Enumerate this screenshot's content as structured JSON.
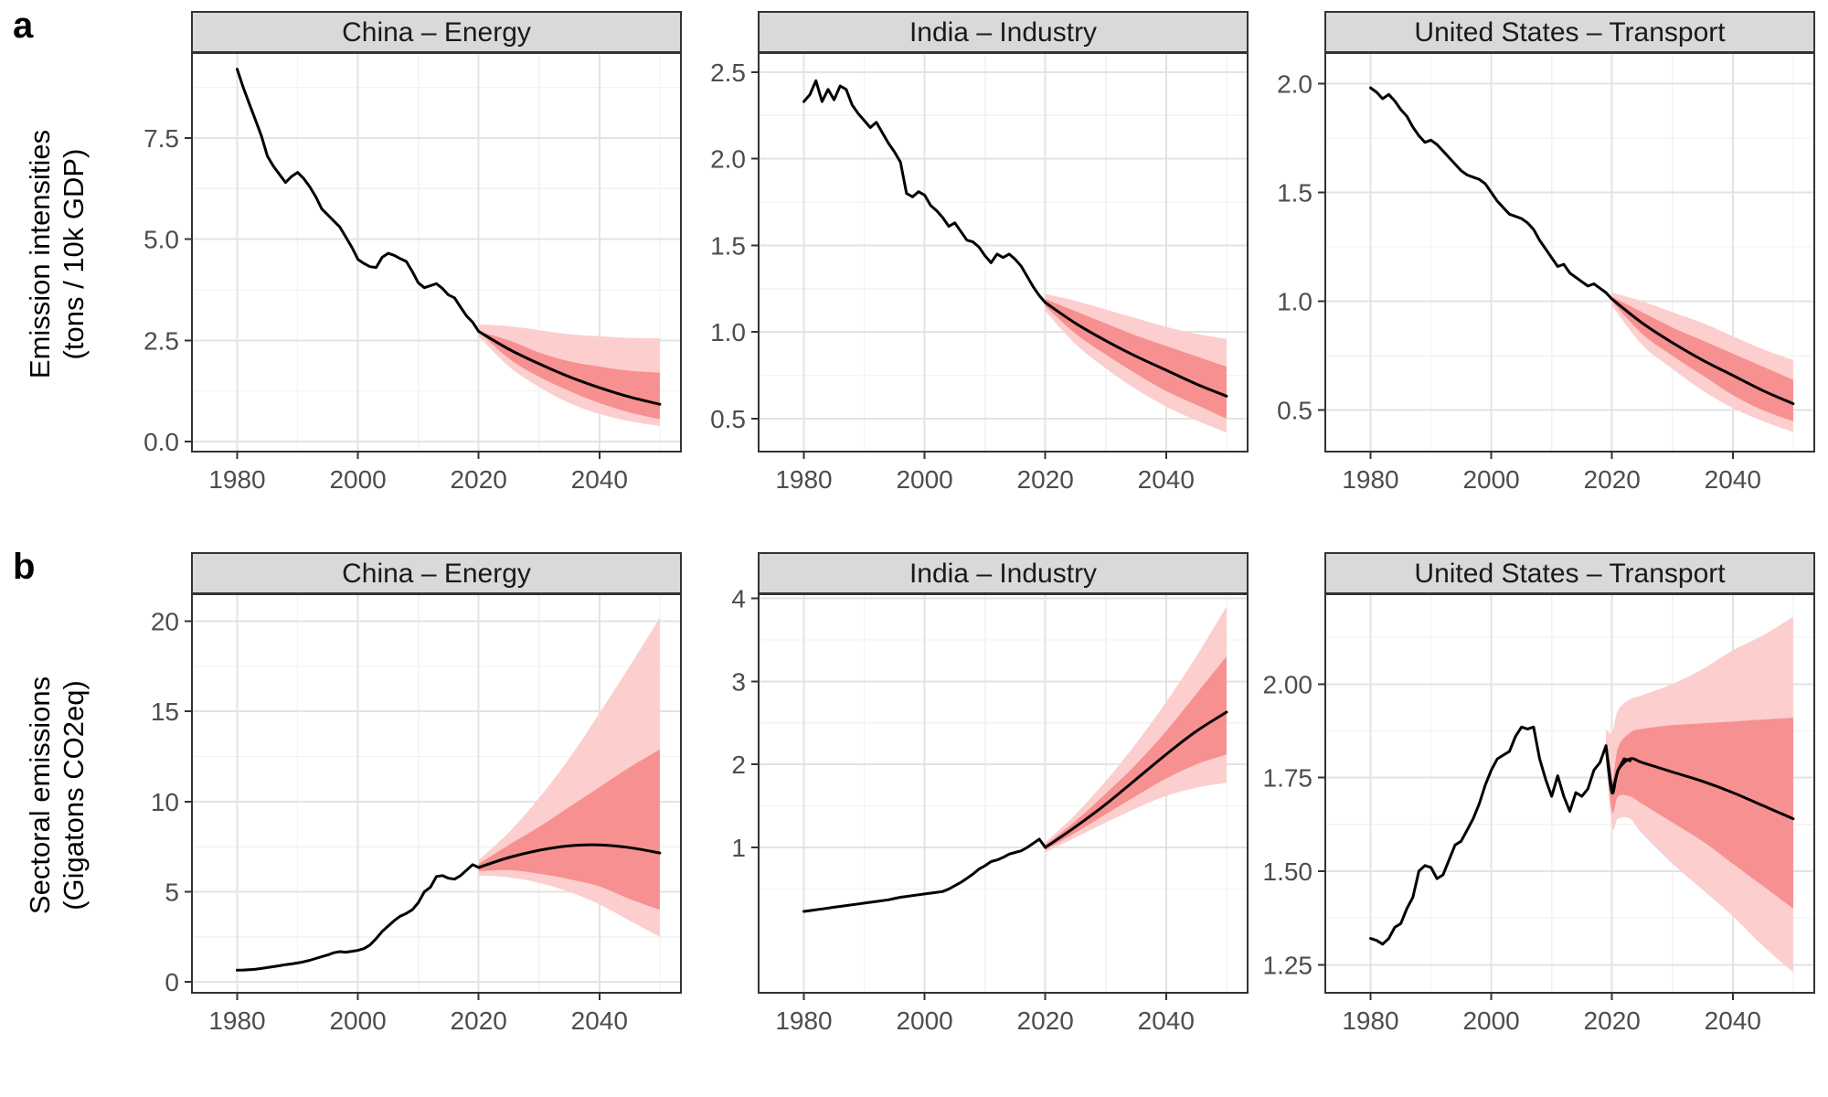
{
  "figure": {
    "rows": [
      {
        "label": "a",
        "y_axis_title_line1": "Emission intensities",
        "y_axis_title_line2": "(tons / 10k GDP)"
      },
      {
        "label": "b",
        "y_axis_title_line1": "Sectoral emissions",
        "y_axis_title_line2": "(Gigatons CO2eq)"
      }
    ],
    "colors": {
      "historical_line": "#000000",
      "median_line": "#000000",
      "band_inner": "#F79090",
      "band_outer": "#FCCECE",
      "strip_background": "#D9D9D9",
      "strip_text": "#1A1A1A",
      "panel_border": "#333333",
      "panel_background": "#FFFFFF",
      "grid_major": "#E3E3E3",
      "grid_minor": "#F2F2F2",
      "tick_mark": "#333333",
      "tick_label": "#4D4D4D"
    }
  },
  "chart_data": [
    {
      "type": "line",
      "row": "a",
      "title": "China – Energy",
      "ylabel": "Emission intensities (tons / 10k GDP)",
      "xlabel": "",
      "xlim": [
        1972.5,
        2053.5
      ],
      "ylim": [
        -0.25,
        9.6
      ],
      "x_ticks": {
        "values": [
          1980,
          2000,
          2020,
          2040
        ],
        "labels": [
          "1980",
          "2000",
          "2020",
          "2040"
        ]
      },
      "y_ticks": {
        "values": [
          0,
          2.5,
          5,
          7.5
        ],
        "labels": [
          "0.0",
          "2.5",
          "5.0",
          "7.5"
        ]
      },
      "historical": {
        "x": [
          1980,
          1981,
          1982,
          1983,
          1984,
          1985,
          1986,
          1987,
          1988,
          1989,
          1990,
          1991,
          1992,
          1993,
          1994,
          1995,
          1996,
          1997,
          1998,
          1999,
          2000,
          2001,
          2002,
          2003,
          2004,
          2005,
          2006,
          2007,
          2008,
          2009,
          2010,
          2011,
          2012,
          2013,
          2014,
          2015,
          2016,
          2017,
          2018,
          2019,
          2020
        ],
        "y": [
          9.2,
          8.75,
          8.35,
          7.95,
          7.55,
          7.05,
          6.8,
          6.6,
          6.4,
          6.55,
          6.65,
          6.5,
          6.3,
          6.05,
          5.75,
          5.6,
          5.45,
          5.3,
          5.05,
          4.8,
          4.5,
          4.4,
          4.32,
          4.3,
          4.55,
          4.65,
          4.6,
          4.52,
          4.45,
          4.2,
          3.92,
          3.8,
          3.85,
          3.9,
          3.78,
          3.62,
          3.55,
          3.32,
          3.1,
          2.95,
          2.72
        ]
      },
      "forecast": {
        "x": [
          2020,
          2025,
          2030,
          2035,
          2040,
          2045,
          2050
        ],
        "median": [
          2.72,
          2.28,
          1.92,
          1.6,
          1.33,
          1.1,
          0.92
        ],
        "inner_hi": [
          2.72,
          2.5,
          2.2,
          1.98,
          1.85,
          1.75,
          1.7
        ],
        "inner_lo": [
          2.72,
          2.05,
          1.6,
          1.25,
          0.95,
          0.72,
          0.55
        ],
        "outer_hi": [
          2.9,
          2.85,
          2.75,
          2.65,
          2.6,
          2.56,
          2.55
        ],
        "outer_lo": [
          2.6,
          1.85,
          1.35,
          0.95,
          0.68,
          0.5,
          0.38
        ]
      }
    },
    {
      "type": "line",
      "row": "a",
      "title": "India – Industry",
      "ylabel": "Emission intensities (tons / 10k GDP)",
      "xlabel": "",
      "xlim": [
        1972.5,
        2053.5
      ],
      "ylim": [
        0.31,
        2.61
      ],
      "x_ticks": {
        "values": [
          1980,
          2000,
          2020,
          2040
        ],
        "labels": [
          "1980",
          "2000",
          "2020",
          "2040"
        ]
      },
      "y_ticks": {
        "values": [
          0.5,
          1,
          1.5,
          2,
          2.5
        ],
        "labels": [
          "0.5",
          "1.0",
          "1.5",
          "2.0",
          "2.5"
        ]
      },
      "historical": {
        "x": [
          1980,
          1981,
          1982,
          1983,
          1984,
          1985,
          1986,
          1987,
          1988,
          1989,
          1990,
          1991,
          1992,
          1993,
          1994,
          1995,
          1996,
          1997,
          1998,
          1999,
          2000,
          2001,
          2002,
          2003,
          2004,
          2005,
          2006,
          2007,
          2008,
          2009,
          2010,
          2011,
          2012,
          2013,
          2014,
          2015,
          2016,
          2017,
          2018,
          2019,
          2020
        ],
        "y": [
          2.33,
          2.37,
          2.45,
          2.33,
          2.4,
          2.34,
          2.42,
          2.4,
          2.31,
          2.26,
          2.22,
          2.18,
          2.21,
          2.15,
          2.09,
          2.04,
          1.98,
          1.8,
          1.78,
          1.81,
          1.79,
          1.73,
          1.7,
          1.66,
          1.61,
          1.63,
          1.58,
          1.53,
          1.52,
          1.49,
          1.44,
          1.4,
          1.45,
          1.43,
          1.45,
          1.42,
          1.38,
          1.32,
          1.26,
          1.21,
          1.17
        ]
      },
      "forecast": {
        "x": [
          2020,
          2025,
          2030,
          2035,
          2040,
          2045,
          2050
        ],
        "median": [
          1.17,
          1.05,
          0.95,
          0.86,
          0.78,
          0.7,
          0.63
        ],
        "inner_hi": [
          1.19,
          1.12,
          1.05,
          0.98,
          0.92,
          0.86,
          0.8
        ],
        "inner_lo": [
          1.15,
          0.99,
          0.87,
          0.76,
          0.66,
          0.58,
          0.5
        ],
        "outer_hi": [
          1.22,
          1.18,
          1.13,
          1.08,
          1.03,
          0.99,
          0.96
        ],
        "outer_lo": [
          1.12,
          0.93,
          0.79,
          0.67,
          0.57,
          0.49,
          0.42
        ]
      }
    },
    {
      "type": "line",
      "row": "a",
      "title": "United States – Transport",
      "ylabel": "Emission intensities (tons / 10k GDP)",
      "xlabel": "",
      "xlim": [
        1972.5,
        2053.5
      ],
      "ylim": [
        0.31,
        2.14
      ],
      "x_ticks": {
        "values": [
          1980,
          2000,
          2020,
          2040
        ],
        "labels": [
          "1980",
          "2000",
          "2020",
          "2040"
        ]
      },
      "y_ticks": {
        "values": [
          0.5,
          1,
          1.5,
          2
        ],
        "labels": [
          "0.5",
          "1.0",
          "1.5",
          "2.0"
        ]
      },
      "historical": {
        "x": [
          1980,
          1981,
          1982,
          1983,
          1984,
          1985,
          1986,
          1987,
          1988,
          1989,
          1990,
          1991,
          1992,
          1993,
          1994,
          1995,
          1996,
          1997,
          1998,
          1999,
          2000,
          2001,
          2002,
          2003,
          2004,
          2005,
          2006,
          2007,
          2008,
          2009,
          2010,
          2011,
          2012,
          2013,
          2014,
          2015,
          2016,
          2017,
          2018,
          2019,
          2020
        ],
        "y": [
          1.98,
          1.96,
          1.93,
          1.95,
          1.92,
          1.88,
          1.85,
          1.8,
          1.76,
          1.73,
          1.74,
          1.72,
          1.69,
          1.66,
          1.63,
          1.6,
          1.58,
          1.57,
          1.56,
          1.54,
          1.5,
          1.46,
          1.43,
          1.4,
          1.39,
          1.38,
          1.36,
          1.33,
          1.28,
          1.24,
          1.2,
          1.16,
          1.17,
          1.13,
          1.11,
          1.09,
          1.07,
          1.08,
          1.06,
          1.04,
          1.01
        ]
      },
      "forecast": {
        "x": [
          2020,
          2025,
          2030,
          2035,
          2040,
          2045,
          2050
        ],
        "median": [
          1.01,
          0.9,
          0.81,
          0.73,
          0.66,
          0.59,
          0.53
        ],
        "inner_hi": [
          1.02,
          0.95,
          0.88,
          0.82,
          0.76,
          0.7,
          0.64
        ],
        "inner_lo": [
          1,
          0.85,
          0.75,
          0.66,
          0.57,
          0.5,
          0.45
        ],
        "outer_hi": [
          1.04,
          1,
          0.95,
          0.9,
          0.84,
          0.78,
          0.73
        ],
        "outer_lo": [
          0.98,
          0.8,
          0.69,
          0.59,
          0.51,
          0.45,
          0.4
        ]
      }
    },
    {
      "type": "line",
      "row": "b",
      "title": "China – Energy",
      "ylabel": "Sectoral emissions (Gigatons CO2eq)",
      "xlabel": "",
      "xlim": [
        1972.5,
        2053.5
      ],
      "ylim": [
        -0.6,
        21.5
      ],
      "x_ticks": {
        "values": [
          1980,
          2000,
          2020,
          2040
        ],
        "labels": [
          "1980",
          "2000",
          "2020",
          "2040"
        ]
      },
      "y_ticks": {
        "values": [
          0,
          5,
          10,
          15,
          20
        ],
        "labels": [
          "0",
          "5",
          "10",
          "15",
          "20"
        ]
      },
      "historical": {
        "x": [
          1980,
          1981,
          1982,
          1983,
          1984,
          1985,
          1986,
          1987,
          1988,
          1989,
          1990,
          1991,
          1992,
          1993,
          1994,
          1995,
          1996,
          1997,
          1998,
          1999,
          2000,
          2001,
          2002,
          2003,
          2004,
          2005,
          2006,
          2007,
          2008,
          2009,
          2010,
          2011,
          2012,
          2013,
          2014,
          2015,
          2016,
          2017,
          2018,
          2019,
          2020
        ],
        "y": [
          0.65,
          0.66,
          0.68,
          0.71,
          0.75,
          0.8,
          0.85,
          0.9,
          0.96,
          1,
          1.05,
          1.12,
          1.2,
          1.3,
          1.4,
          1.5,
          1.62,
          1.68,
          1.65,
          1.7,
          1.75,
          1.85,
          2.05,
          2.4,
          2.8,
          3.1,
          3.4,
          3.65,
          3.8,
          4,
          4.4,
          5,
          5.25,
          5.85,
          5.9,
          5.75,
          5.7,
          5.9,
          6.2,
          6.5,
          6.35
        ]
      },
      "forecast": {
        "x": [
          2020,
          2025,
          2030,
          2035,
          2040,
          2045,
          2050
        ],
        "median": [
          6.35,
          6.9,
          7.3,
          7.55,
          7.6,
          7.45,
          7.15
        ],
        "inner_hi": [
          6.55,
          7.6,
          8.6,
          9.7,
          10.8,
          11.9,
          12.9
        ],
        "inner_lo": [
          6.15,
          6.2,
          6,
          5.7,
          5.3,
          4.6,
          4
        ],
        "outer_hi": [
          6.75,
          8.3,
          10.2,
          12.4,
          14.9,
          17.5,
          20.2
        ],
        "outer_lo": [
          5.9,
          5.8,
          5.5,
          5,
          4.3,
          3.4,
          2.5
        ]
      }
    },
    {
      "type": "line",
      "row": "b",
      "title": "India – Industry",
      "ylabel": "Sectoral emissions (Gigatons CO2eq)",
      "xlabel": "",
      "xlim": [
        1972.5,
        2053.5
      ],
      "ylim": [
        -0.75,
        4.05
      ],
      "x_ticks": {
        "values": [
          1980,
          2000,
          2020,
          2040
        ],
        "labels": [
          "1980",
          "2000",
          "2020",
          "2040"
        ]
      },
      "y_ticks": {
        "values": [
          1,
          2,
          3,
          4
        ],
        "labels": [
          "1",
          "2",
          "3",
          "4"
        ]
      },
      "historical": {
        "x": [
          1980,
          1981,
          1982,
          1983,
          1984,
          1985,
          1986,
          1987,
          1988,
          1989,
          1990,
          1991,
          1992,
          1993,
          1994,
          1995,
          1996,
          1997,
          1998,
          1999,
          2000,
          2001,
          2002,
          2003,
          2004,
          2005,
          2006,
          2007,
          2008,
          2009,
          2010,
          2011,
          2012,
          2013,
          2014,
          2015,
          2016,
          2017,
          2018,
          2019,
          2020
        ],
        "y": [
          0.23,
          0.24,
          0.25,
          0.26,
          0.27,
          0.28,
          0.29,
          0.3,
          0.31,
          0.32,
          0.33,
          0.34,
          0.35,
          0.36,
          0.37,
          0.385,
          0.4,
          0.41,
          0.42,
          0.43,
          0.44,
          0.45,
          0.46,
          0.47,
          0.5,
          0.54,
          0.58,
          0.63,
          0.68,
          0.74,
          0.78,
          0.83,
          0.85,
          0.88,
          0.92,
          0.94,
          0.96,
          1,
          1.05,
          1.1,
          1
        ]
      },
      "forecast": {
        "x": [
          2020,
          2025,
          2030,
          2035,
          2040,
          2045,
          2050
        ],
        "median": [
          1,
          1.25,
          1.52,
          1.82,
          2.12,
          2.4,
          2.63
        ],
        "inner_hi": [
          1.03,
          1.32,
          1.65,
          2,
          2.4,
          2.85,
          3.3
        ],
        "inner_lo": [
          0.97,
          1.18,
          1.4,
          1.62,
          1.83,
          2,
          2.12
        ],
        "outer_hi": [
          1.06,
          1.4,
          1.8,
          2.25,
          2.75,
          3.3,
          3.9
        ],
        "outer_lo": [
          0.94,
          1.12,
          1.3,
          1.47,
          1.62,
          1.72,
          1.78
        ]
      }
    },
    {
      "type": "line",
      "row": "b",
      "title": "United States – Transport",
      "ylabel": "Sectoral emissions (Gigatons CO2eq)",
      "xlabel": "",
      "xlim": [
        1972.5,
        2053.5
      ],
      "ylim": [
        1.175,
        2.24
      ],
      "x_ticks": {
        "values": [
          1980,
          2000,
          2020,
          2040
        ],
        "labels": [
          "1980",
          "2000",
          "2020",
          "2040"
        ]
      },
      "y_ticks": {
        "values": [
          1.25,
          1.5,
          1.75,
          2
        ],
        "labels": [
          "1.25",
          "1.50",
          "1.75",
          "2.00"
        ]
      },
      "historical": {
        "x": [
          1980,
          1981,
          1982,
          1983,
          1984,
          1985,
          1986,
          1987,
          1988,
          1989,
          1990,
          1991,
          1992,
          1993,
          1994,
          1995,
          1996,
          1997,
          1998,
          1999,
          2000,
          2001,
          2002,
          2003,
          2004,
          2005,
          2006,
          2007,
          2008,
          2009,
          2010,
          2011,
          2012,
          2013,
          2014,
          2015,
          2016,
          2017,
          2018,
          2019,
          2020,
          2021,
          2022,
          2023
        ],
        "y": [
          1.32,
          1.315,
          1.305,
          1.32,
          1.35,
          1.36,
          1.4,
          1.43,
          1.5,
          1.515,
          1.51,
          1.48,
          1.49,
          1.53,
          1.57,
          1.58,
          1.61,
          1.64,
          1.68,
          1.73,
          1.77,
          1.8,
          1.81,
          1.82,
          1.86,
          1.885,
          1.88,
          1.885,
          1.8,
          1.745,
          1.7,
          1.755,
          1.7,
          1.66,
          1.71,
          1.7,
          1.72,
          1.77,
          1.79,
          1.835,
          1.71,
          1.77,
          1.8,
          1.795
        ]
      },
      "forecast": {
        "x": [
          2019,
          2020,
          2021,
          2023,
          2025,
          2030,
          2035,
          2040,
          2045,
          2050
        ],
        "median": [
          1.835,
          1.71,
          1.77,
          1.8,
          1.79,
          1.765,
          1.74,
          1.71,
          1.675,
          1.64
        ],
        "inner_hi": [
          1.85,
          1.74,
          1.83,
          1.87,
          1.88,
          1.89,
          1.895,
          1.9,
          1.905,
          1.91
        ],
        "inner_lo": [
          1.82,
          1.66,
          1.7,
          1.7,
          1.68,
          1.63,
          1.58,
          1.52,
          1.46,
          1.4
        ],
        "outer_hi": [
          1.88,
          1.87,
          1.93,
          1.96,
          1.97,
          2,
          2.04,
          2.09,
          2.13,
          2.18
        ],
        "outer_lo": [
          1.8,
          1.62,
          1.64,
          1.64,
          1.6,
          1.52,
          1.45,
          1.38,
          1.3,
          1.23
        ]
      }
    }
  ]
}
